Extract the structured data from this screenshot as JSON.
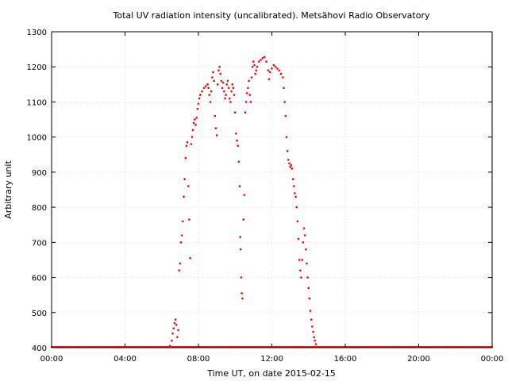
{
  "chart_data": {
    "type": "scatter",
    "title": "Total UV radiation intensity (uncalibrated). Metsähovi Radio Observatory",
    "xlabel": "Time UT, on date 2015-02-15",
    "ylabel": "Arbitrary unit",
    "xlim": [
      0,
      24
    ],
    "ylim": [
      400,
      1300
    ],
    "x_ticks": [
      0,
      4,
      8,
      12,
      16,
      20,
      24
    ],
    "x_tick_labels": [
      "00:00",
      "04:00",
      "08:00",
      "12:00",
      "16:00",
      "20:00",
      "00:00"
    ],
    "y_ticks": [
      400,
      500,
      600,
      700,
      800,
      900,
      1000,
      1100,
      1200,
      1300
    ],
    "y_tick_labels": [
      "400",
      "500",
      "600",
      "700",
      "800",
      "900",
      "1000",
      "1100",
      "1200",
      "1300"
    ],
    "grid": true,
    "marker_color": "#ff0000",
    "series": [
      {
        "points": [
          [
            6.45,
            405
          ],
          [
            6.55,
            420
          ],
          [
            6.6,
            440
          ],
          [
            6.65,
            455
          ],
          [
            6.7,
            470
          ],
          [
            6.75,
            480
          ],
          [
            6.8,
            465
          ],
          [
            6.85,
            430
          ],
          [
            6.9,
            450
          ],
          [
            6.95,
            620
          ],
          [
            7.0,
            640
          ],
          [
            7.05,
            700
          ],
          [
            7.1,
            720
          ],
          [
            7.15,
            760
          ],
          [
            7.2,
            830
          ],
          [
            7.25,
            880
          ],
          [
            7.3,
            940
          ],
          [
            7.35,
            975
          ],
          [
            7.4,
            985
          ],
          [
            7.45,
            860
          ],
          [
            7.5,
            765
          ],
          [
            7.55,
            655
          ],
          [
            7.6,
            980
          ],
          [
            7.65,
            1000
          ],
          [
            7.7,
            1020
          ],
          [
            7.75,
            1040
          ],
          [
            7.8,
            1050
          ],
          [
            7.85,
            1035
          ],
          [
            7.9,
            1055
          ],
          [
            7.95,
            1080
          ],
          [
            8.0,
            1095
          ],
          [
            8.05,
            1110
          ],
          [
            8.1,
            1120
          ],
          [
            8.2,
            1130
          ],
          [
            8.3,
            1140
          ],
          [
            8.4,
            1145
          ],
          [
            8.5,
            1150
          ],
          [
            8.55,
            1140
          ],
          [
            8.6,
            1120
          ],
          [
            8.65,
            1100
          ],
          [
            8.7,
            1130
          ],
          [
            8.75,
            1170
          ],
          [
            8.8,
            1185
          ],
          [
            8.85,
            1160
          ],
          [
            8.9,
            1060
          ],
          [
            8.95,
            1025
          ],
          [
            9.0,
            1005
          ],
          [
            9.05,
            1150
          ],
          [
            9.1,
            1190
          ],
          [
            9.15,
            1200
          ],
          [
            9.2,
            1180
          ],
          [
            9.25,
            1160
          ],
          [
            9.3,
            1140
          ],
          [
            9.35,
            1155
          ],
          [
            9.4,
            1130
          ],
          [
            9.45,
            1110
          ],
          [
            9.5,
            1120
          ],
          [
            9.55,
            1150
          ],
          [
            9.6,
            1160
          ],
          [
            9.65,
            1140
          ],
          [
            9.7,
            1110
          ],
          [
            9.75,
            1100
          ],
          [
            9.8,
            1130
          ],
          [
            9.85,
            1150
          ],
          [
            9.9,
            1140
          ],
          [
            9.95,
            1120
          ],
          [
            10.0,
            1070
          ],
          [
            10.05,
            1010
          ],
          [
            10.1,
            990
          ],
          [
            10.15,
            975
          ],
          [
            10.2,
            930
          ],
          [
            10.25,
            860
          ],
          [
            10.28,
            715
          ],
          [
            10.3,
            680
          ],
          [
            10.33,
            600
          ],
          [
            10.36,
            555
          ],
          [
            10.4,
            540
          ],
          [
            10.45,
            765
          ],
          [
            10.5,
            835
          ],
          [
            10.55,
            1070
          ],
          [
            10.6,
            1100
          ],
          [
            10.65,
            1125
          ],
          [
            10.7,
            1140
          ],
          [
            10.75,
            1160
          ],
          [
            10.8,
            1120
          ],
          [
            10.85,
            1100
          ],
          [
            10.9,
            1170
          ],
          [
            10.95,
            1200
          ],
          [
            11.0,
            1215
          ],
          [
            11.05,
            1205
          ],
          [
            11.1,
            1180
          ],
          [
            11.15,
            1190
          ],
          [
            11.2,
            1200
          ],
          [
            11.3,
            1215
          ],
          [
            11.4,
            1220
          ],
          [
            11.5,
            1225
          ],
          [
            11.6,
            1228
          ],
          [
            11.7,
            1215
          ],
          [
            11.8,
            1190
          ],
          [
            11.85,
            1165
          ],
          [
            11.9,
            1185
          ],
          [
            12.0,
            1195
          ],
          [
            12.1,
            1205
          ],
          [
            12.2,
            1200
          ],
          [
            12.3,
            1195
          ],
          [
            12.4,
            1190
          ],
          [
            12.5,
            1180
          ],
          [
            12.6,
            1170
          ],
          [
            12.65,
            1140
          ],
          [
            12.7,
            1100
          ],
          [
            12.75,
            1060
          ],
          [
            12.8,
            1000
          ],
          [
            12.85,
            960
          ],
          [
            12.9,
            935
          ],
          [
            12.95,
            925
          ],
          [
            13.0,
            915
          ],
          [
            13.05,
            920
          ],
          [
            13.1,
            910
          ],
          [
            13.15,
            880
          ],
          [
            13.2,
            860
          ],
          [
            13.25,
            840
          ],
          [
            13.3,
            830
          ],
          [
            13.35,
            800
          ],
          [
            13.4,
            760
          ],
          [
            13.45,
            710
          ],
          [
            13.5,
            650
          ],
          [
            13.55,
            620
          ],
          [
            13.6,
            600
          ],
          [
            13.65,
            650
          ],
          [
            13.7,
            700
          ],
          [
            13.75,
            740
          ],
          [
            13.8,
            720
          ],
          [
            13.85,
            680
          ],
          [
            13.9,
            640
          ],
          [
            13.95,
            600
          ],
          [
            14.0,
            570
          ],
          [
            14.05,
            540
          ],
          [
            14.1,
            505
          ],
          [
            14.15,
            480
          ],
          [
            14.2,
            460
          ],
          [
            14.25,
            445
          ],
          [
            14.3,
            430
          ],
          [
            14.35,
            420
          ],
          [
            14.4,
            410
          ],
          [
            14.45,
            402
          ]
        ]
      }
    ]
  }
}
